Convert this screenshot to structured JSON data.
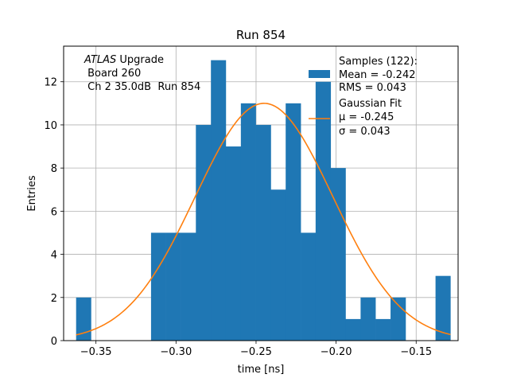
{
  "chart_data": {
    "type": "bar",
    "title": "Run 854",
    "xlabel": "time [ns]",
    "ylabel": "Entries",
    "xlim": [
      -0.3702,
      -0.1238
    ],
    "ylim": [
      0,
      13.65
    ],
    "grid": true,
    "x_ticks": [
      -0.35,
      -0.3,
      -0.25,
      -0.2,
      -0.15
    ],
    "x_tick_labels": [
      "−0.35",
      "−0.30",
      "−0.25",
      "−0.20",
      "−0.15"
    ],
    "y_ticks": [
      0,
      2,
      4,
      6,
      8,
      10,
      12
    ],
    "y_tick_labels": [
      "0",
      "2",
      "4",
      "6",
      "8",
      "10",
      "12"
    ],
    "bin_edges": [
      -0.3624,
      -0.3531,
      -0.3437,
      -0.3344,
      -0.325,
      -0.3156,
      -0.3063,
      -0.2969,
      -0.2876,
      -0.2782,
      -0.2689,
      -0.2595,
      -0.2502,
      -0.2408,
      -0.2315,
      -0.2221,
      -0.2128,
      -0.2034,
      -0.1941,
      -0.1847,
      -0.1754,
      -0.166,
      -0.1566,
      -0.1473,
      -0.1379,
      -0.1286
    ],
    "counts": [
      2,
      0,
      0,
      0,
      0,
      5,
      5,
      5,
      10,
      13,
      9,
      11,
      10,
      7,
      11,
      5,
      12,
      8,
      1,
      2,
      1,
      2,
      0,
      0,
      3
    ],
    "histogram_color": "#1f77b4",
    "fit": {
      "name": "Gaussian Fit",
      "mu": -0.245,
      "sigma": 0.043,
      "amplitude": 11.0,
      "x_range": [
        -0.3624,
        -0.1286
      ],
      "color": "#ff7f0e"
    },
    "legend": {
      "placement": "top-right",
      "entries": [
        {
          "kind": "patch",
          "lines": [
            "Samples (122):",
            "Mean = -0.242",
            "RMS = 0.043"
          ],
          "color": "#1f77b4"
        },
        {
          "kind": "line",
          "lines": [
            "Gaussian Fit",
            "μ = -0.245",
            "σ = 0.043"
          ],
          "color": "#ff7f0e"
        }
      ]
    },
    "annotation": {
      "placement": "top-left",
      "line1_italic": "ATLAS",
      "line1_rest": " Upgrade",
      "line2": " Board 260",
      "line3": " Ch 2 35.0dB  Run 854"
    }
  }
}
